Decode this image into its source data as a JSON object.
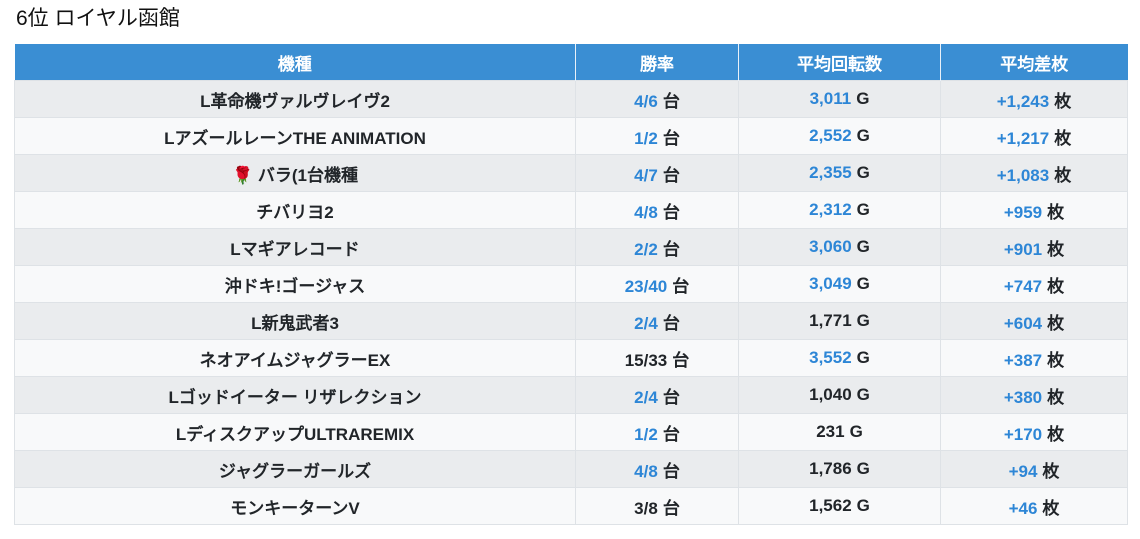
{
  "title": "6位 ロイヤル函館",
  "colors": {
    "header_bg": "#3a8ed3",
    "header_text": "#ffffff",
    "value_highlight": "#2d86d6",
    "value_normal": "#212529",
    "row_odd_bg": "#eaecee",
    "row_even_bg": "#f8f9fa"
  },
  "table": {
    "columns": [
      {
        "label": "機種"
      },
      {
        "label": "勝率"
      },
      {
        "label": "平均回転数"
      },
      {
        "label": "平均差枚"
      }
    ],
    "rows": [
      {
        "name": "L革命機ヴァルヴレイヴ2",
        "win_rate": {
          "value": "4/6",
          "unit": "台",
          "color": "blue"
        },
        "spins": {
          "value": "3,011",
          "unit": "G",
          "color": "blue"
        },
        "diff": {
          "value": "+1,243",
          "unit": "枚",
          "color": "blue"
        }
      },
      {
        "name": "LアズールレーンTHE ANIMATION",
        "win_rate": {
          "value": "1/2",
          "unit": "台",
          "color": "blue"
        },
        "spins": {
          "value": "2,552",
          "unit": "G",
          "color": "blue"
        },
        "diff": {
          "value": "+1,217",
          "unit": "枚",
          "color": "blue"
        }
      },
      {
        "name": "🌹 バラ(1台機種",
        "win_rate": {
          "value": "4/7",
          "unit": "台",
          "color": "blue"
        },
        "spins": {
          "value": "2,355",
          "unit": "G",
          "color": "blue"
        },
        "diff": {
          "value": "+1,083",
          "unit": "枚",
          "color": "blue"
        }
      },
      {
        "name": "チバリヨ2",
        "win_rate": {
          "value": "4/8",
          "unit": "台",
          "color": "blue"
        },
        "spins": {
          "value": "2,312",
          "unit": "G",
          "color": "blue"
        },
        "diff": {
          "value": "+959",
          "unit": "枚",
          "color": "blue"
        }
      },
      {
        "name": "Lマギアレコード",
        "win_rate": {
          "value": "2/2",
          "unit": "台",
          "color": "blue"
        },
        "spins": {
          "value": "3,060",
          "unit": "G",
          "color": "blue"
        },
        "diff": {
          "value": "+901",
          "unit": "枚",
          "color": "blue"
        }
      },
      {
        "name": "沖ドキ!ゴージャス",
        "win_rate": {
          "value": "23/40",
          "unit": "台",
          "color": "blue"
        },
        "spins": {
          "value": "3,049",
          "unit": "G",
          "color": "blue"
        },
        "diff": {
          "value": "+747",
          "unit": "枚",
          "color": "blue"
        }
      },
      {
        "name": "L新鬼武者3",
        "win_rate": {
          "value": "2/4",
          "unit": "台",
          "color": "blue"
        },
        "spins": {
          "value": "1,771",
          "unit": "G",
          "color": "black"
        },
        "diff": {
          "value": "+604",
          "unit": "枚",
          "color": "blue"
        }
      },
      {
        "name": "ネオアイムジャグラーEX",
        "win_rate": {
          "value": "15/33",
          "unit": "台",
          "color": "black"
        },
        "spins": {
          "value": "3,552",
          "unit": "G",
          "color": "blue"
        },
        "diff": {
          "value": "+387",
          "unit": "枚",
          "color": "blue"
        }
      },
      {
        "name": "Lゴッドイーター リザレクション",
        "win_rate": {
          "value": "2/4",
          "unit": "台",
          "color": "blue"
        },
        "spins": {
          "value": "1,040",
          "unit": "G",
          "color": "black"
        },
        "diff": {
          "value": "+380",
          "unit": "枚",
          "color": "blue"
        }
      },
      {
        "name": "LディスクアップULTRAREMIX",
        "win_rate": {
          "value": "1/2",
          "unit": "台",
          "color": "blue"
        },
        "spins": {
          "value": "231",
          "unit": "G",
          "color": "black"
        },
        "diff": {
          "value": "+170",
          "unit": "枚",
          "color": "blue"
        }
      },
      {
        "name": "ジャグラーガールズ",
        "win_rate": {
          "value": "4/8",
          "unit": "台",
          "color": "blue"
        },
        "spins": {
          "value": "1,786",
          "unit": "G",
          "color": "black"
        },
        "diff": {
          "value": "+94",
          "unit": "枚",
          "color": "blue"
        }
      },
      {
        "name": "モンキーターンV",
        "win_rate": {
          "value": "3/8",
          "unit": "台",
          "color": "black"
        },
        "spins": {
          "value": "1,562",
          "unit": "G",
          "color": "black"
        },
        "diff": {
          "value": "+46",
          "unit": "枚",
          "color": "blue"
        }
      }
    ]
  }
}
